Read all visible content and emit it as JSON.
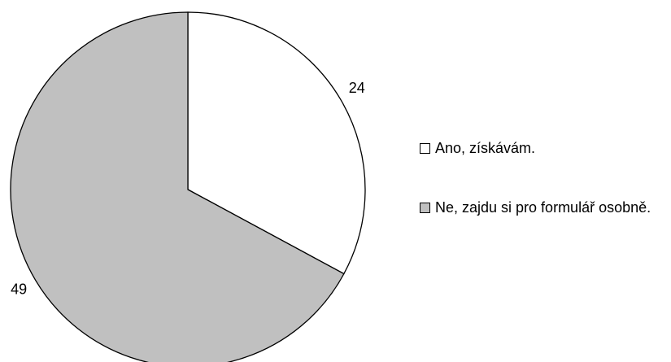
{
  "chart_data": {
    "type": "pie",
    "categories": [
      "Ano, získávám.",
      "Ne, zajdu si pro formulář osobně."
    ],
    "values": [
      24,
      49
    ],
    "colors": [
      "#ffffff",
      "#c0c0c0"
    ],
    "legend": "right"
  }
}
